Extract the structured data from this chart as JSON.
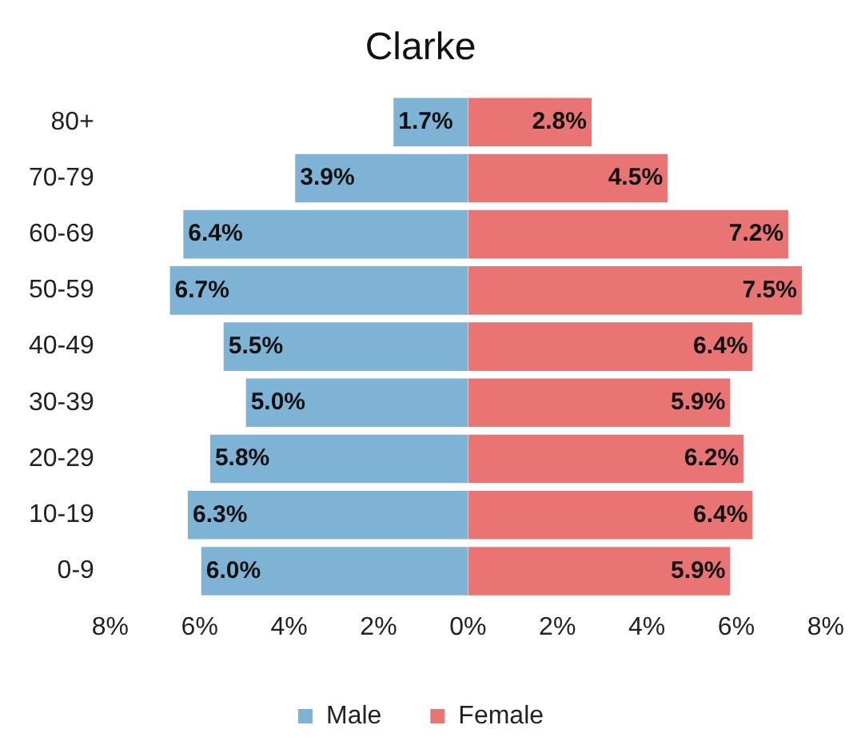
{
  "chart_data": {
    "type": "bar",
    "orientation": "horizontal",
    "title": "Clarke",
    "categories": [
      "80+",
      "70-79",
      "60-69",
      "50-59",
      "40-49",
      "30-39",
      "20-29",
      "10-19",
      "0-9"
    ],
    "series": [
      {
        "name": "Male",
        "color": "#7fb3d5",
        "values": [
          1.7,
          3.9,
          6.4,
          6.7,
          5.5,
          5.0,
          5.8,
          6.3,
          6.0
        ],
        "base": [
          -1.7,
          -3.9,
          -6.4,
          -6.7,
          -5.5,
          -5.0,
          -5.8,
          -6.3,
          -6.0
        ],
        "value_labels": [
          "1.7%",
          "3.9%",
          "6.4%",
          "6.7%",
          "5.5%",
          "5.0%",
          "5.8%",
          "6.3%",
          "6.0%"
        ]
      },
      {
        "name": "Female",
        "color": "#e87474",
        "values": [
          2.8,
          4.5,
          7.2,
          7.5,
          6.4,
          5.9,
          6.2,
          6.4,
          5.9
        ],
        "value_labels": [
          "2.8%",
          "4.5%",
          "7.2%",
          "7.5%",
          "6.4%",
          "5.9%",
          "6.2%",
          "6.4%",
          "5.9%"
        ]
      }
    ],
    "xlim": [
      -8,
      8
    ],
    "xticks": [
      {
        "value": -8,
        "label": "8%"
      },
      {
        "value": -6,
        "label": "6%"
      },
      {
        "value": -4,
        "label": "4%"
      },
      {
        "value": -2,
        "label": "2%"
      },
      {
        "value": 0,
        "label": "0%"
      },
      {
        "value": 2,
        "label": "2%"
      },
      {
        "value": 4,
        "label": "4%"
      },
      {
        "value": 6,
        "label": "6%"
      },
      {
        "value": 8,
        "label": "8%"
      }
    ],
    "grid": false,
    "legend": "bottom"
  }
}
